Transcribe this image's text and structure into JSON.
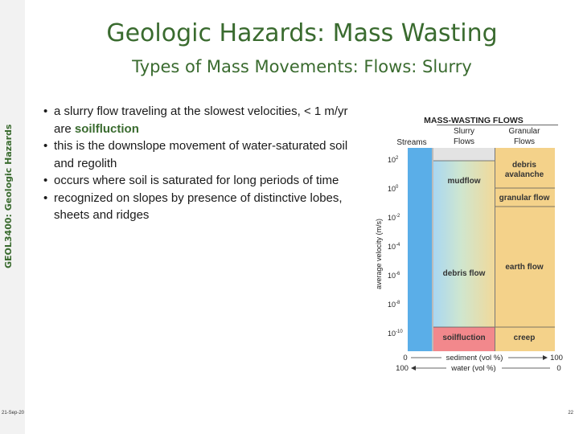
{
  "sidebar": {
    "course_title": "GEOL3400: Geologic Hazards",
    "date": "21-Sep-20"
  },
  "page_number": "22",
  "title": "Geologic Hazards: Mass Wasting",
  "subtitle": "Types of Mass Movements: Flows: Slurry",
  "bullets": [
    {
      "text": "a slurry flow traveling at the slowest velocities, < 1 m/yr are ",
      "highlight": "soilfluction"
    },
    {
      "text": "this is the downslope movement of water-saturated soil and regolith",
      "highlight": ""
    },
    {
      "text": "occurs where soil is saturated for long periods of time",
      "highlight": ""
    },
    {
      "text": "recognized on slopes by presence of distinctive lobes, sheets and ridges",
      "highlight": ""
    }
  ],
  "figure": {
    "heading": "MASS-WASTING FLOWS",
    "col_streams": "Streams",
    "col_slurry_1": "Slurry",
    "col_slurry_2": "Flows",
    "col_granular_1": "Granular",
    "col_granular_2": "Flows",
    "ylabel": "average velocity (m/s)",
    "yticks": [
      {
        "base": "10",
        "exp": "2"
      },
      {
        "base": "10",
        "exp": "0"
      },
      {
        "base": "10",
        "exp": "-2"
      },
      {
        "base": "10",
        "exp": "-4"
      },
      {
        "base": "10",
        "exp": "-6"
      },
      {
        "base": "10",
        "exp": "-8"
      },
      {
        "base": "10",
        "exp": "-10"
      }
    ],
    "mudflow": "mudflow",
    "debris_flow": "debris flow",
    "soilfluction": "soilfluction",
    "debris_avalanche_1": "debris",
    "debris_avalanche_2": "avalanche",
    "granular_flow": "granular flow",
    "earth_flow": "earth flow",
    "creep": "creep",
    "sediment_left": "0",
    "sediment_label": "sediment (vol %)",
    "sediment_right": "100",
    "water_left": "100",
    "water_label": "water (vol %)",
    "water_right": "0",
    "colors": {
      "title_green": "#3a6b2f",
      "streams_blue": "#5aaee8",
      "granular_orange": "#f4d28a",
      "soilfluction_pink": "#f2888c"
    }
  }
}
